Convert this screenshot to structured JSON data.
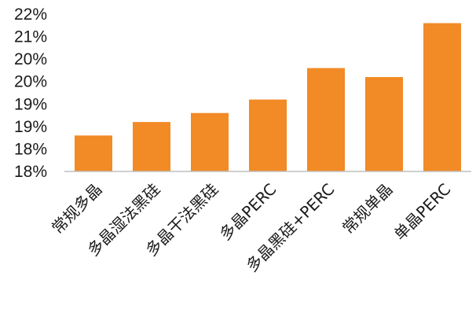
{
  "chart_data": {
    "type": "bar",
    "categories": [
      "常规多晶",
      "多晶湿法黑硅",
      "多晶干法黑硅",
      "多晶PERC",
      "多晶黑硅+PERC",
      "常规单晶",
      "单晶PERC"
    ],
    "values": [
      18.8,
      19.1,
      19.3,
      19.6,
      20.3,
      20.1,
      21.3
    ],
    "yticks": [
      18,
      18.5,
      19,
      19.5,
      20,
      20.5,
      21,
      21.5
    ],
    "ytick_labels": [
      "18%",
      "18%",
      "19%",
      "19%",
      "20%",
      "20%",
      "21%",
      "22%"
    ],
    "ylim": [
      18,
      21.5
    ],
    "title": "",
    "xlabel": "",
    "ylabel": "",
    "grid": false,
    "legend": "none",
    "bar_color": "#F28A25",
    "axis_color": "#BFBFBF"
  }
}
